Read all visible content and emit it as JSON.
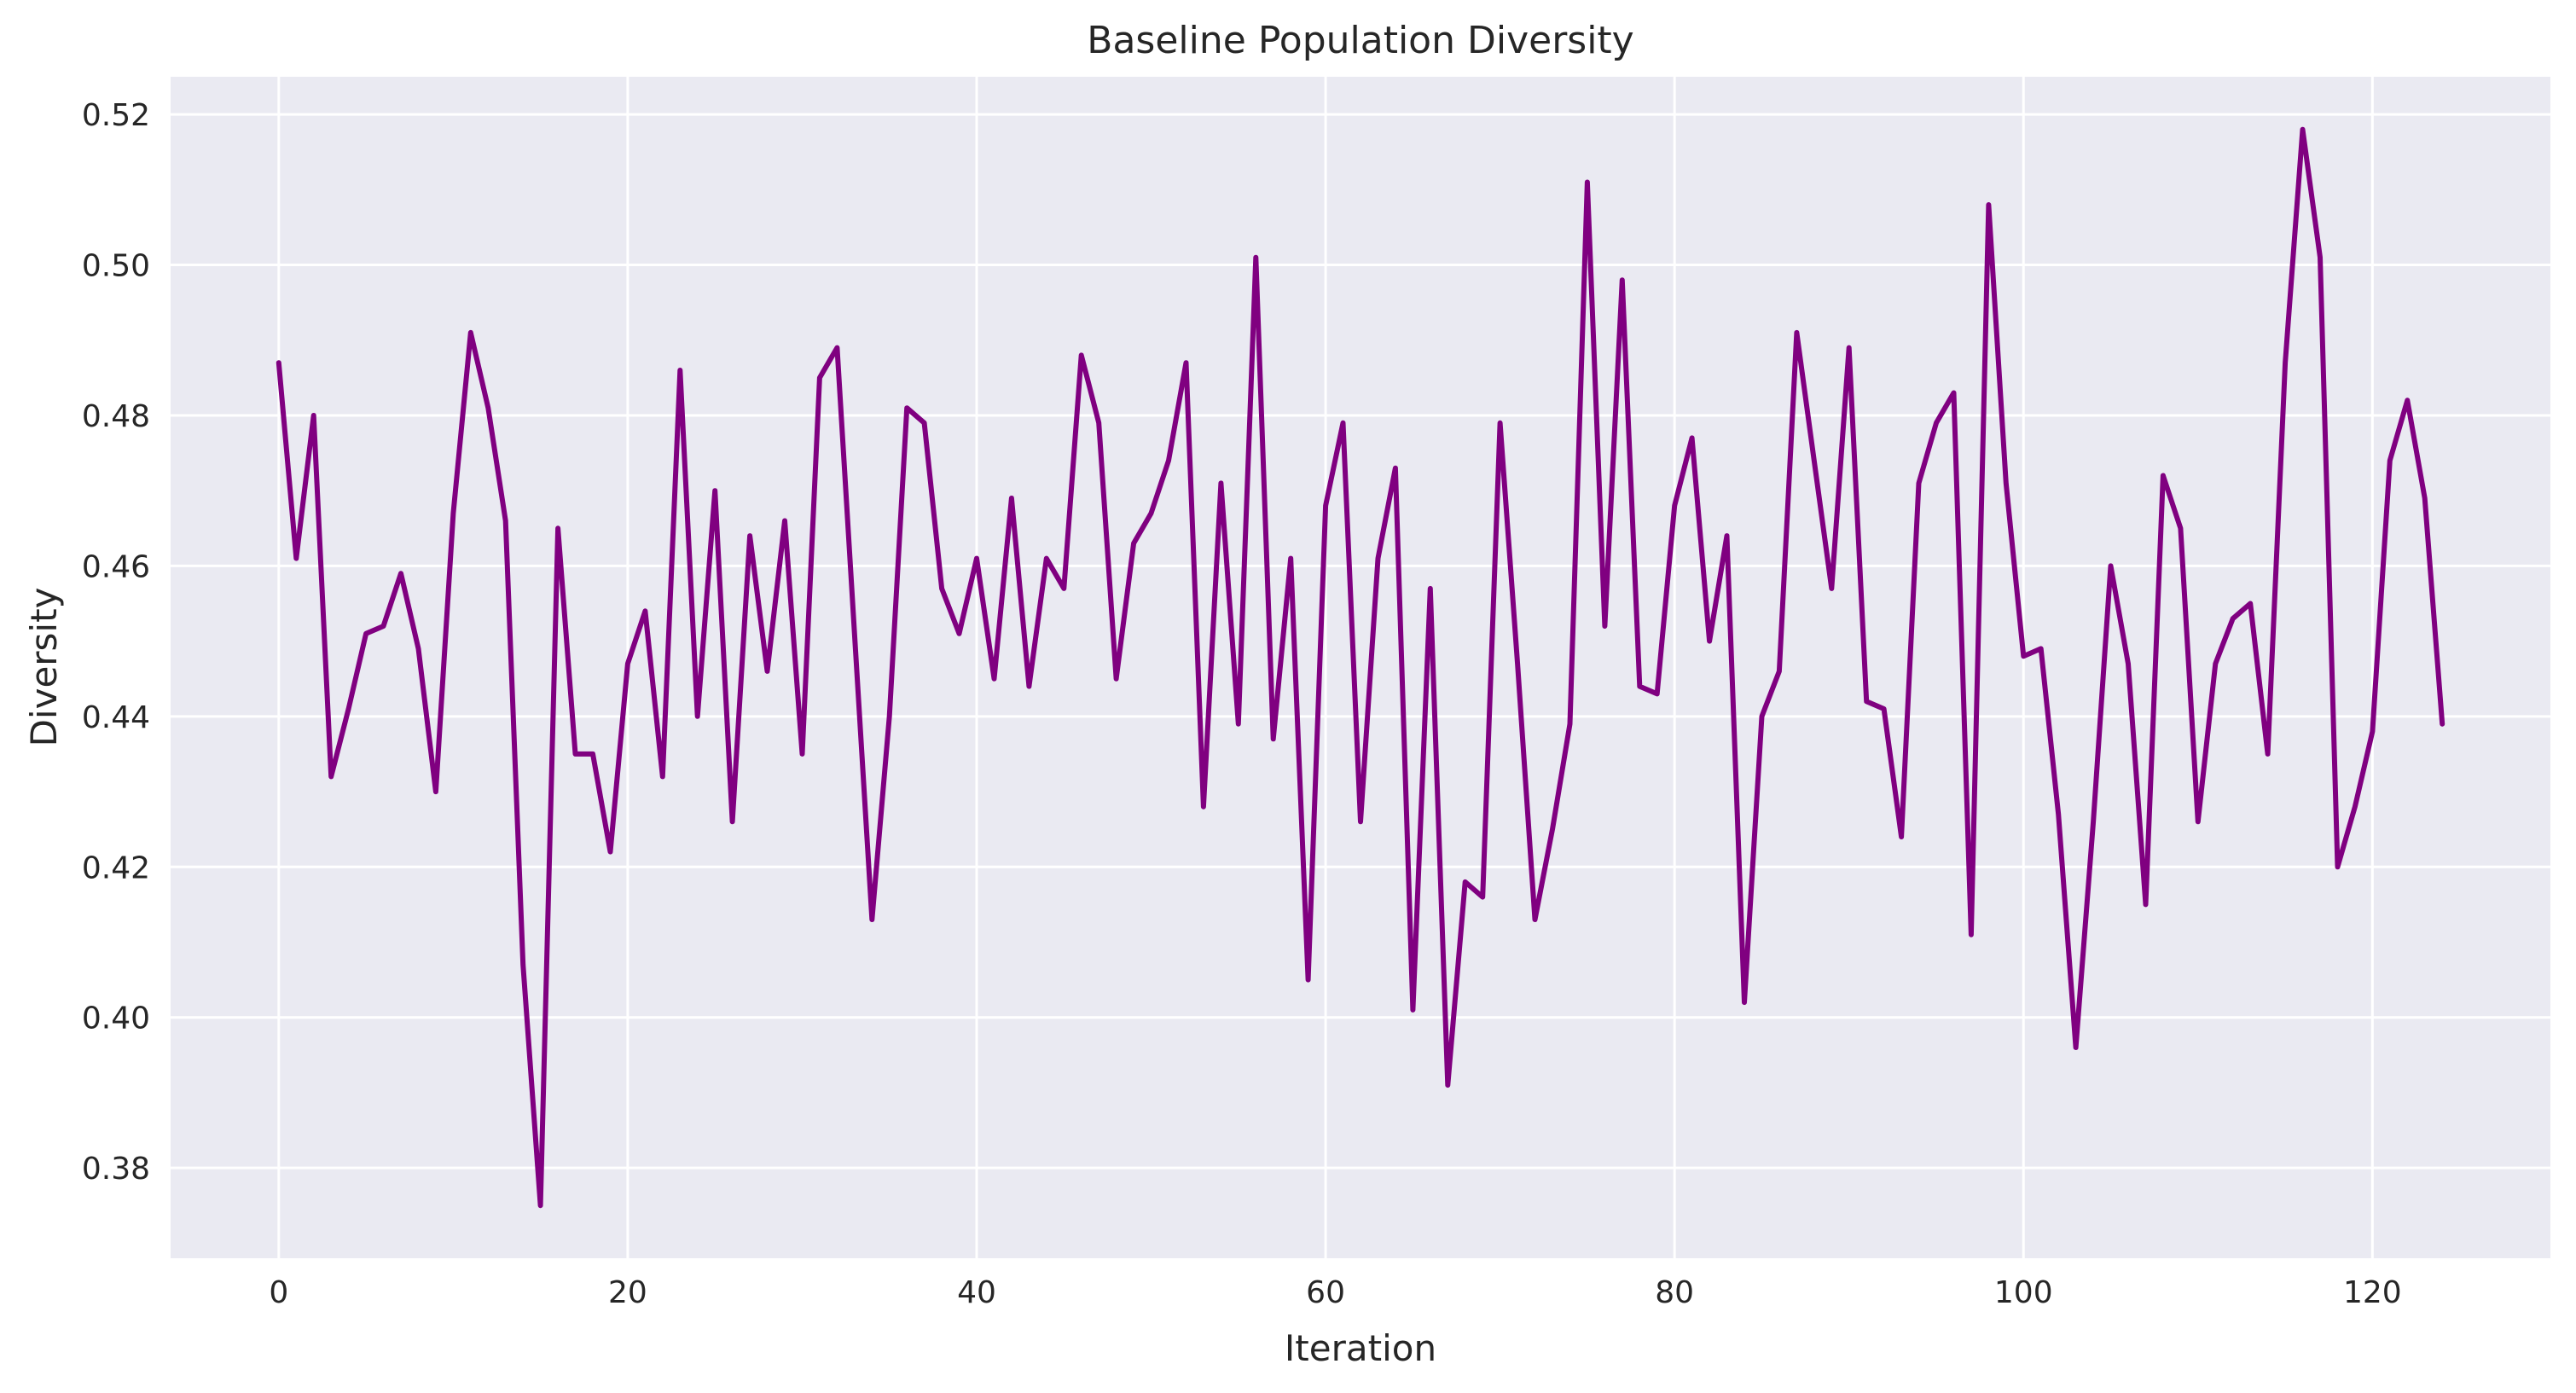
{
  "chart_data": {
    "type": "line",
    "title": "Baseline Population Diversity",
    "xlabel": "Iteration",
    "ylabel": "Diversity",
    "xlim": [
      -6.2,
      130.2
    ],
    "ylim": [
      0.368,
      0.525
    ],
    "xticks": [
      0,
      20,
      40,
      60,
      80,
      100,
      120
    ],
    "yticks": [
      0.38,
      0.4,
      0.42,
      0.44,
      0.46,
      0.48,
      0.5,
      0.52
    ],
    "xtick_labels": [
      "0",
      "20",
      "40",
      "60",
      "80",
      "100",
      "120"
    ],
    "ytick_labels": [
      "0.38",
      "0.40",
      "0.42",
      "0.44",
      "0.46",
      "0.48",
      "0.50",
      "0.52"
    ],
    "grid": true,
    "legend": false,
    "colors": {
      "line": "#800080",
      "plot_bg": "#eaeaf2",
      "grid": "#ffffff",
      "text": "#262626"
    },
    "series": [
      {
        "x": [
          0,
          1,
          2,
          3,
          4,
          5,
          6,
          7,
          8,
          9,
          10,
          11,
          12,
          13,
          14,
          15,
          16,
          17,
          18,
          19,
          20,
          21,
          22,
          23,
          24,
          25,
          26,
          27,
          28,
          29,
          30,
          31,
          32,
          33,
          34,
          35,
          36,
          37,
          38,
          39,
          40,
          41,
          42,
          43,
          44,
          45,
          46,
          47,
          48,
          49,
          50,
          51,
          52,
          53,
          54,
          55,
          56,
          57,
          58,
          59,
          60,
          61,
          62,
          63,
          64,
          65,
          66,
          67,
          68,
          69,
          70,
          71,
          72,
          73,
          74,
          75,
          76,
          77,
          78,
          79,
          80,
          81,
          82,
          83,
          84,
          85,
          86,
          87,
          88,
          89,
          90,
          91,
          92,
          93,
          94,
          95,
          96,
          97,
          98,
          99,
          100,
          101,
          102,
          103,
          104,
          105,
          106,
          107,
          108,
          109,
          110,
          111,
          112,
          113,
          114,
          115,
          116,
          117,
          118,
          119,
          120,
          121,
          122,
          123,
          124
        ],
        "values": [
          0.487,
          0.461,
          0.48,
          0.432,
          0.441,
          0.451,
          0.452,
          0.459,
          0.449,
          0.43,
          0.467,
          0.491,
          0.481,
          0.466,
          0.407,
          0.375,
          0.465,
          0.435,
          0.435,
          0.422,
          0.447,
          0.454,
          0.432,
          0.486,
          0.44,
          0.47,
          0.426,
          0.464,
          0.446,
          0.466,
          0.435,
          0.485,
          0.489,
          0.451,
          0.413,
          0.44,
          0.481,
          0.479,
          0.457,
          0.451,
          0.461,
          0.445,
          0.469,
          0.444,
          0.461,
          0.457,
          0.488,
          0.479,
          0.445,
          0.463,
          0.467,
          0.474,
          0.487,
          0.428,
          0.471,
          0.439,
          0.501,
          0.437,
          0.461,
          0.405,
          0.468,
          0.479,
          0.426,
          0.461,
          0.473,
          0.401,
          0.457,
          0.391,
          0.418,
          0.416,
          0.479,
          0.447,
          0.413,
          0.425,
          0.439,
          0.511,
          0.452,
          0.498,
          0.444,
          0.443,
          0.468,
          0.477,
          0.45,
          0.464,
          0.402,
          0.44,
          0.446,
          0.491,
          0.474,
          0.457,
          0.489,
          0.442,
          0.441,
          0.424,
          0.471,
          0.479,
          0.483,
          0.411,
          0.508,
          0.471,
          0.448,
          0.449,
          0.427,
          0.396,
          0.426,
          0.46,
          0.447,
          0.415,
          0.472,
          0.465,
          0.426,
          0.447,
          0.453,
          0.455,
          0.435,
          0.487,
          0.518,
          0.501,
          0.42,
          0.428,
          0.438,
          0.474,
          0.482,
          0.469,
          0.439
        ]
      }
    ]
  }
}
